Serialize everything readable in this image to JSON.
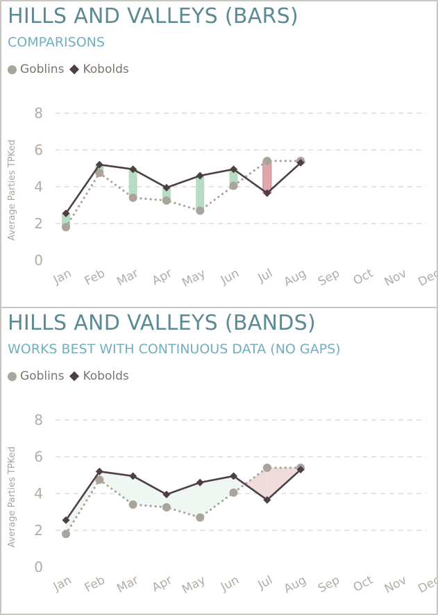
{
  "chart_data": [
    {
      "type": "line",
      "title": "HILLS AND VALLEYS (BARS)",
      "subtitle": "COMPARISONS",
      "ylabel": "Average Parties TPKed",
      "xlabel": "",
      "categories": [
        "Jan",
        "Feb",
        "Mar",
        "Apr",
        "May",
        "Jun",
        "Jul",
        "Aug",
        "Sep",
        "Oct",
        "Nov",
        "Dec"
      ],
      "ylim": [
        0,
        8
      ],
      "yticks": [
        "0",
        "2",
        "4",
        "6",
        "8"
      ],
      "grid": true,
      "legend_position": "top-left",
      "difference_style": "bars",
      "series": [
        {
          "name": "Goblins",
          "values": [
            1.8,
            4.75,
            3.4,
            3.25,
            2.7,
            4.05,
            5.4,
            5.4,
            null,
            null,
            null,
            null
          ]
        },
        {
          "name": "Kobolds",
          "values": [
            2.55,
            5.2,
            4.95,
            3.95,
            4.6,
            4.95,
            3.65,
            5.3,
            null,
            null,
            null,
            null
          ]
        }
      ]
    },
    {
      "type": "line",
      "title": "HILLS AND VALLEYS (BANDS)",
      "subtitle": "WORKS BEST WITH CONTINUOUS DATA (NO GAPS)",
      "ylabel": "Average Parties TPKed",
      "xlabel": "",
      "categories": [
        "Jan",
        "Feb",
        "Mar",
        "Apr",
        "May",
        "Jun",
        "Jul",
        "Aug",
        "Sep",
        "Oct",
        "Nov",
        "Dec"
      ],
      "ylim": [
        0,
        8
      ],
      "yticks": [
        "0",
        "2",
        "4",
        "6",
        "8"
      ],
      "grid": true,
      "legend_position": "top-left",
      "difference_style": "bands",
      "series": [
        {
          "name": "Goblins",
          "values": [
            1.8,
            4.75,
            3.4,
            3.25,
            2.7,
            4.05,
            5.4,
            5.4,
            null,
            null,
            null,
            null
          ]
        },
        {
          "name": "Kobolds",
          "values": [
            2.55,
            5.2,
            4.95,
            3.95,
            4.6,
            4.95,
            3.65,
            5.3,
            null,
            null,
            null,
            null
          ]
        }
      ]
    }
  ],
  "colors": {
    "goblins": "#aaa49b",
    "kobolds": "#4d3f44",
    "positive_fill": "#b6ddc3",
    "positive_band": "#eef7f1",
    "negative_fill": "#e2a7ab",
    "negative_band": "#f1dcdc",
    "grid": "#d6d4d0",
    "title": "#5b8a94",
    "subtitle": "#72aebe"
  }
}
